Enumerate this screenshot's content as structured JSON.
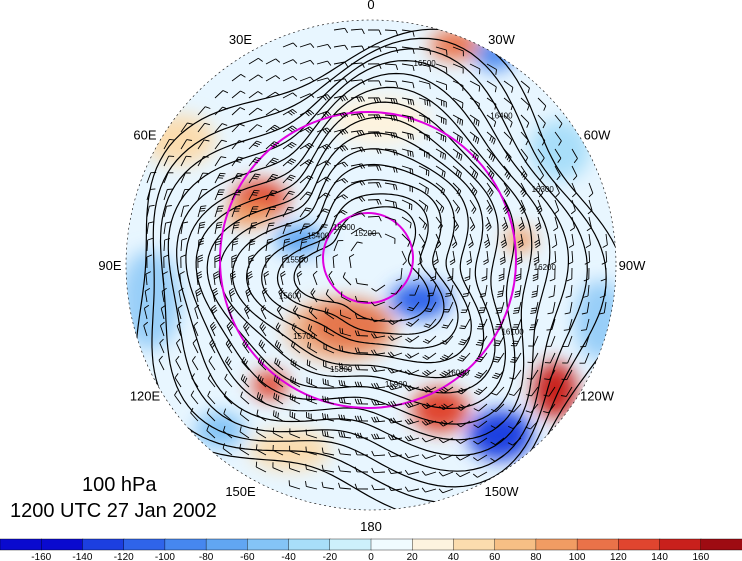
{
  "map": {
    "level": "100 hPa",
    "valid_time": "1200 UTC 27 Jan 2002",
    "longitude_labels": [
      {
        "text": "0",
        "lon": 0
      },
      {
        "text": "30W",
        "lon": -30
      },
      {
        "text": "60W",
        "lon": -60
      },
      {
        "text": "90W",
        "lon": -90
      },
      {
        "text": "120W",
        "lon": -120
      },
      {
        "text": "150W",
        "lon": -150
      },
      {
        "text": "180",
        "lon": 180
      },
      {
        "text": "150E",
        "lon": 150
      },
      {
        "text": "120E",
        "lon": 120
      },
      {
        "text": "90E",
        "lon": 90
      },
      {
        "text": "60E",
        "lon": 60
      },
      {
        "text": "30E",
        "lon": 30
      }
    ],
    "contour_labels": [
      "16500",
      "16400",
      "16300",
      "16200",
      "16100",
      "16000",
      "15900",
      "15800",
      "15700",
      "15600",
      "15500",
      "15400",
      "15300",
      "15200"
    ],
    "colors": {
      "contour": "#000000",
      "circle": "#e000e0",
      "ocean_wash": "#e8f6ff"
    }
  },
  "colorbar": {
    "tick_labels": [
      "-160",
      "-140",
      "-120",
      "-100",
      "-80",
      "-60",
      "-40",
      "-20",
      "0",
      "20",
      "40",
      "60",
      "80",
      "100",
      "120",
      "140",
      "160"
    ],
    "colors": [
      "#0a0acf",
      "#1c3fe0",
      "#2f64ea",
      "#4687ef",
      "#61a6f2",
      "#84c4f6",
      "#a8def9",
      "#cdf0fb",
      "#f0fbff",
      "#fdf3df",
      "#fbdcae",
      "#f6bf85",
      "#f19c63",
      "#ea7249",
      "#e0452f",
      "#c9201c",
      "#9e0b12"
    ]
  }
}
